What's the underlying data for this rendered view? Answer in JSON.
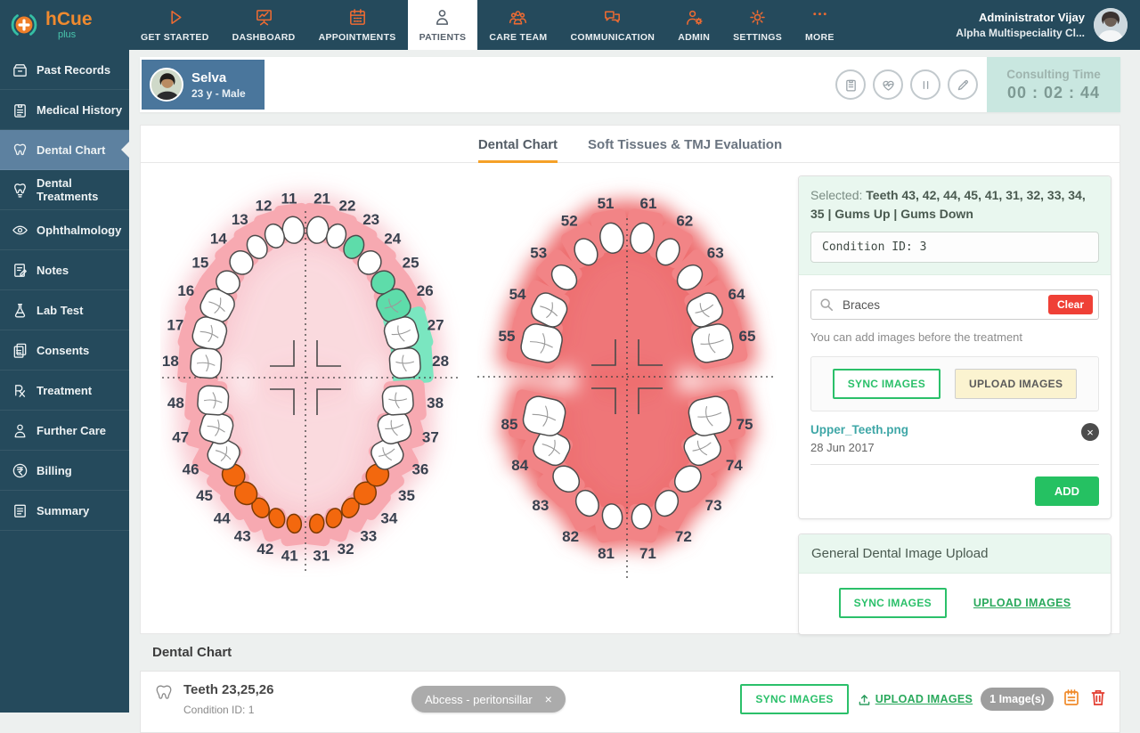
{
  "brand": {
    "name": "hCue",
    "sub": "plus"
  },
  "topnav": {
    "items": [
      {
        "label": "GET STARTED",
        "icon": "play",
        "active": false
      },
      {
        "label": "DASHBOARD",
        "icon": "dashboard",
        "active": false
      },
      {
        "label": "APPOINTMENTS",
        "icon": "calendar",
        "active": false
      },
      {
        "label": "PATIENTS",
        "icon": "patients",
        "active": true
      },
      {
        "label": "CARE TEAM",
        "icon": "careteam",
        "active": false
      },
      {
        "label": "COMMUNICATION",
        "icon": "chat",
        "active": false
      },
      {
        "label": "ADMIN",
        "icon": "admin",
        "active": false
      },
      {
        "label": "SETTINGS",
        "icon": "gear",
        "active": false
      },
      {
        "label": "MORE",
        "icon": "more",
        "active": false
      }
    ],
    "user": {
      "name": "Administrator Vijay",
      "org": "Alpha Multispeciality Cl..."
    }
  },
  "sidebar": {
    "items": [
      {
        "label": "Past Records",
        "icon": "records",
        "active": false
      },
      {
        "label": "Medical History",
        "icon": "history",
        "active": false
      },
      {
        "label": "Dental Chart",
        "icon": "tooth",
        "active": true
      },
      {
        "label": "Dental Treatments",
        "icon": "implant",
        "active": false
      },
      {
        "label": "Ophthalmology",
        "icon": "eye",
        "active": false
      },
      {
        "label": "Notes",
        "icon": "notes",
        "active": false
      },
      {
        "label": "Lab Test",
        "icon": "lab",
        "active": false
      },
      {
        "label": "Consents",
        "icon": "consents",
        "active": false
      },
      {
        "label": "Treatment",
        "icon": "rx",
        "active": false
      },
      {
        "label": "Further Care",
        "icon": "person",
        "active": false
      },
      {
        "label": "Billing",
        "icon": "rupee",
        "active": false
      },
      {
        "label": "Summary",
        "icon": "summary",
        "active": false
      }
    ]
  },
  "patient": {
    "name": "Selva",
    "meta": "23 y - Male"
  },
  "patient_actions": [
    "records",
    "vitals",
    "pause",
    "edit"
  ],
  "consult": {
    "label": "Consulting Time",
    "time": "00 : 02 : 44"
  },
  "tabs": [
    {
      "label": "Dental Chart",
      "active": true
    },
    {
      "label": "Soft Tissues & TMJ Evaluation",
      "active": false
    }
  ],
  "panel": {
    "selected_prefix": "Selected: ",
    "selected_teeth": "Teeth 43, 42, 44, 45, 41, 31, 32, 33, 34, 35 |",
    "selected_gums": "Gums Up | Gums Down",
    "condition_id": "Condition ID: 3",
    "search_value": "Braces",
    "clear_label": "Clear",
    "note": "You can add images before the treatment",
    "sync_label": "SYNC IMAGES",
    "upload_label": "UPLOAD IMAGES",
    "file": {
      "name": "Upper_Teeth.png",
      "date": "28 Jun 2017"
    },
    "add_label": "ADD"
  },
  "general_upload": {
    "title": "General Dental Image Upload",
    "sync_label": "SYNC IMAGES",
    "upload_label": "UPLOAD IMAGES"
  },
  "bottom": {
    "heading": "Dental Chart",
    "item": {
      "teeth": "Teeth 23,25,26",
      "condition": "Condition ID: 1",
      "tag": "Abcess - peritonsillar"
    },
    "sync_label": "SYNC IMAGES",
    "upload_label": "UPLOAD IMAGES",
    "count": "1 Image(s)"
  },
  "dental_charts": {
    "permanent": {
      "quadrants": {
        "upper_left": [
          "11",
          "12",
          "13",
          "14",
          "15",
          "16",
          "17",
          "18"
        ],
        "upper_right": [
          "21",
          "22",
          "23",
          "24",
          "25",
          "26",
          "27",
          "28"
        ],
        "lower_left": [
          "41",
          "42",
          "43",
          "44",
          "45",
          "46",
          "47",
          "48"
        ],
        "lower_right": [
          "31",
          "32",
          "33",
          "34",
          "35",
          "36",
          "37",
          "38"
        ]
      },
      "highlight_teal": [
        "23",
        "25",
        "26"
      ],
      "highlight_orange": [
        "41",
        "42",
        "43",
        "44",
        "45",
        "31",
        "32",
        "33",
        "34",
        "35"
      ],
      "gum_teal": [
        "27",
        "28"
      ]
    },
    "primary": {
      "quadrants": {
        "upper_left": [
          "51",
          "52",
          "53",
          "54",
          "55"
        ],
        "upper_right": [
          "61",
          "62",
          "63",
          "64",
          "65"
        ],
        "lower_left": [
          "81",
          "82",
          "83",
          "84",
          "85"
        ],
        "lower_right": [
          "71",
          "72",
          "73",
          "74",
          "75"
        ]
      }
    }
  },
  "colors": {
    "accent_orange": "#ee6b32",
    "nav_bg": "#254a5c",
    "active_item": "#5d81a0",
    "green": "#2bc06a",
    "red": "#ef4036",
    "link_teal": "#3fa7a7",
    "mint": "#c9e7e0",
    "tooth_teal": "#5edcaa",
    "tooth_orange": "#f3680e",
    "gum_pink": "#f7a9b1",
    "gum_red": "#f28486",
    "gum_teal": "#7ae6c0"
  }
}
